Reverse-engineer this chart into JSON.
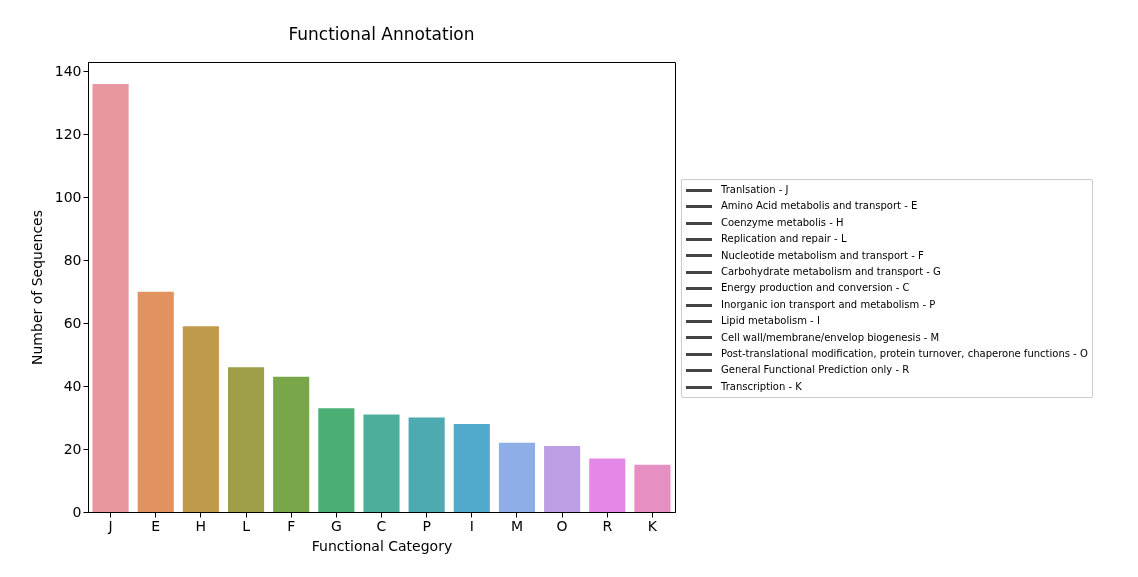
{
  "chart_data": {
    "type": "bar",
    "title": "Functional Annotation",
    "xlabel": "Functional Category",
    "ylabel": "Number of Sequences",
    "categories": [
      "J",
      "E",
      "H",
      "L",
      "F",
      "G",
      "C",
      "P",
      "I",
      "M",
      "O",
      "R",
      "K"
    ],
    "values": [
      136,
      70,
      59,
      46,
      43,
      33,
      31,
      30,
      28,
      22,
      21,
      17,
      15
    ],
    "colors": [
      "#e8969f",
      "#e2925f",
      "#bf9a4b",
      "#9e9f48",
      "#78a648",
      "#4bae73",
      "#4daf9b",
      "#4daab0",
      "#51a9cc",
      "#8fade7",
      "#bd9fe6",
      "#e487e6",
      "#e58fc3"
    ],
    "ylim": [
      0,
      143
    ],
    "yticks": [
      0,
      20,
      40,
      60,
      80,
      100,
      120,
      140
    ],
    "grid": false,
    "annotations": [
      "Tranlsation - J",
      "Amino Acid metabolis and transport - E",
      "Coenzyme metabolis - H",
      "Replication and repair - L",
      "Nucleotide metabolism and transport - F",
      "Carbohydrate metabolism and transport - G",
      "Energy production and conversion - C",
      "Inorganic ion transport and metabolism - P",
      "Lipid metabolism - I",
      "Cell wall/membrane/envelop biogenesis - M",
      "Post-translational modification, protein turnover, chaperone functions - O",
      "General Functional Prediction only - R",
      "Transcription - K"
    ]
  }
}
